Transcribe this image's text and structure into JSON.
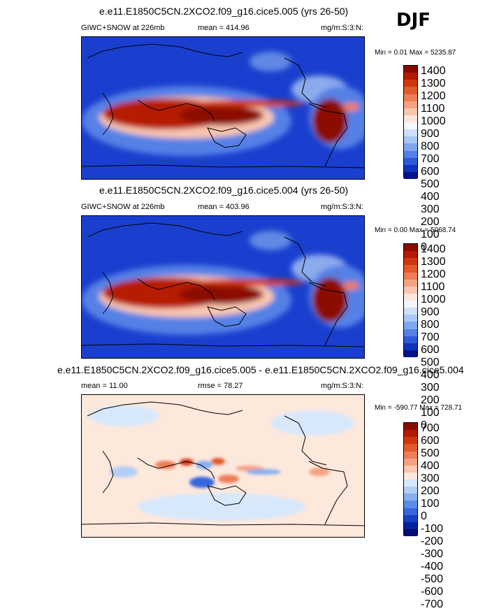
{
  "season": "DJF",
  "panels": [
    {
      "title": "e.e11.E1850C5CN.2XCO2.f09_g16.cice5.005 (yrs 26-50)",
      "variable": "GIWC+SNOW at 226mb",
      "stat": "mean =  414.96",
      "units": "mg/m:S:3:N:",
      "minmax": "Min =   0.01 Max = 5235.87"
    },
    {
      "title": "e.e11.E1850C5CN.2XCO2.f09_g16.cice5.004 (yrs 26-50)",
      "variable": "GIWC+SNOW at 226mb",
      "stat": "mean =  403.96",
      "units": "mg/m:S:3:N:",
      "minmax": "Min =   0.00 Max = 5068.74"
    },
    {
      "title": "e.e11.E1850C5CN.2XCO2.f09_g16.cice5.005 - e.e11.E1850C5CN.2XCO2.f09_g16.cice5.004",
      "stat": "mean =  11.00",
      "rmse": "rmse =  78.27",
      "units": "mg/m:S:3:N:",
      "minmax": "Min = -590.77 Max = 728.71"
    }
  ],
  "colorbars": {
    "abs": {
      "labels": [
        "1400",
        "1300",
        "1200",
        "1100",
        "1000",
        "900",
        "800",
        "700",
        "600",
        "500",
        "400",
        "300",
        "200",
        "100",
        "0"
      ],
      "colors": [
        "#8b0a00",
        "#b51a04",
        "#d2360f",
        "#e25a2c",
        "#ef7d55",
        "#f5a183",
        "#f9c6b0",
        "#fce6dc",
        "#f4f6fb",
        "#cde0f8",
        "#a9c7f4",
        "#7fa7ee",
        "#5581e6",
        "#2e5ad9",
        "#1232bd",
        "#04118a"
      ]
    },
    "diff": {
      "labels": [
        "700",
        "600",
        "500",
        "400",
        "300",
        "200",
        "100",
        "0",
        "-100",
        "-200",
        "-300",
        "-400",
        "-500",
        "-600",
        "-700"
      ],
      "colors": [
        "#8b0a00",
        "#b51a04",
        "#d2360f",
        "#e25a2c",
        "#ef7d55",
        "#f5a183",
        "#f9c6b0",
        "#fde8dc",
        "#d8e8fb",
        "#b3cdf5",
        "#88aef0",
        "#5c8ce8",
        "#3566dd",
        "#1840c4",
        "#08219b",
        "#020e70"
      ]
    }
  },
  "chart_data": [
    {
      "type": "heatmap",
      "title": "e.e11.E1850C5CN.2XCO2.f09_g16.cice5.005 (yrs 26-50)",
      "variable": "GIWC+SNOW at 226mb",
      "season": "DJF",
      "mean": 414.96,
      "min": 0.01,
      "max": 5235.87,
      "units": "mg/m:S:3:N:",
      "levels": [
        0,
        100,
        200,
        300,
        400,
        500,
        600,
        700,
        800,
        900,
        1000,
        1100,
        1200,
        1300,
        1400
      ]
    },
    {
      "type": "heatmap",
      "title": "e.e11.E1850C5CN.2XCO2.f09_g16.cice5.004 (yrs 26-50)",
      "variable": "GIWC+SNOW at 226mb",
      "season": "DJF",
      "mean": 403.96,
      "min": 0.0,
      "max": 5068.74,
      "units": "mg/m:S:3:N:",
      "levels": [
        0,
        100,
        200,
        300,
        400,
        500,
        600,
        700,
        800,
        900,
        1000,
        1100,
        1200,
        1300,
        1400
      ]
    },
    {
      "type": "heatmap",
      "title": "e.e11.E1850C5CN.2XCO2.f09_g16.cice5.005 - e.e11.E1850C5CN.2XCO2.f09_g16.cice5.004",
      "season": "DJF",
      "mean": 11.0,
      "rmse": 78.27,
      "min": -590.77,
      "max": 728.71,
      "units": "mg/m:S:3:N:",
      "levels": [
        -700,
        -600,
        -500,
        -400,
        -300,
        -200,
        -100,
        0,
        100,
        200,
        300,
        400,
        500,
        600,
        700
      ]
    }
  ]
}
